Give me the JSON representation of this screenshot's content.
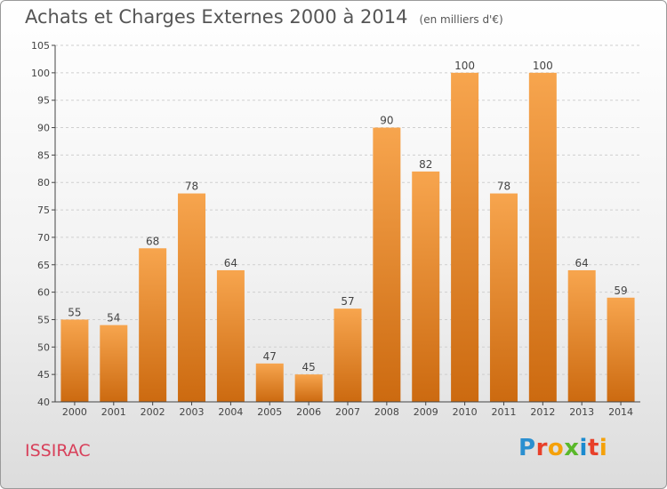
{
  "title": "Achats et Charges Externes 2000 à 2014",
  "unit_note": "(en milliers d'€)",
  "town": "ISSIRAC",
  "logo": {
    "text": "Proxiti",
    "letter_colors": [
      "#2a8fd0",
      "#e8402a",
      "#f5a10a",
      "#5ab82a",
      "#1a8ad0",
      "#e8402a",
      "#f5a10a"
    ]
  },
  "colors": {
    "bar_top": "#f7a54e",
    "bar_bottom": "#cc6a10",
    "axis": "#444444",
    "grid": "#cfcfcf",
    "text": "#444444"
  },
  "chart_data": {
    "type": "bar",
    "categories": [
      "2000",
      "2001",
      "2002",
      "2003",
      "2004",
      "2005",
      "2006",
      "2007",
      "2008",
      "2009",
      "2010",
      "2011",
      "2012",
      "2013",
      "2014"
    ],
    "values": [
      55,
      54,
      68,
      78,
      64,
      47,
      45,
      57,
      90,
      82,
      100,
      78,
      100,
      64,
      59
    ],
    "ylim": [
      40,
      105
    ],
    "yticks": [
      40,
      45,
      50,
      55,
      60,
      65,
      70,
      75,
      80,
      85,
      90,
      95,
      100,
      105
    ],
    "grid": "horizontal dashed",
    "data_labels": true
  }
}
